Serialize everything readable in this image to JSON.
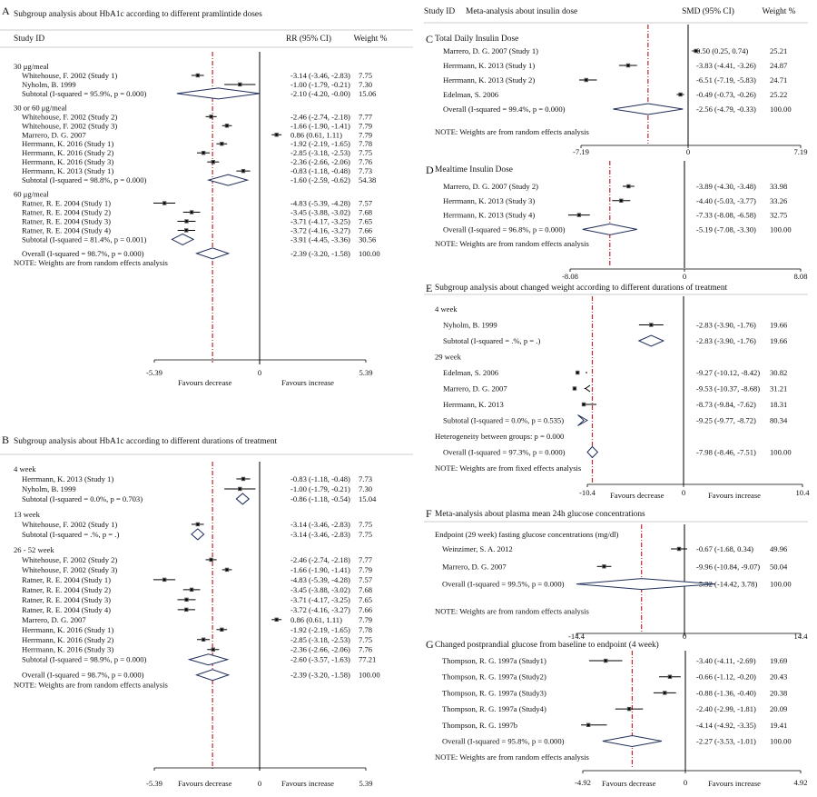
{
  "chart_data": [
    {
      "type": "forest",
      "panel": "A",
      "title": "Subgroup analysis about HbA1c according to different pramlintide doses",
      "header": {
        "study": "Study ID",
        "effect": "RR (95% CI)",
        "weight": "Weight %"
      },
      "xlim": [
        -5.39,
        5.39
      ],
      "ticks": [
        "-5.39",
        "0",
        "5.39"
      ],
      "footer_left": "Favours decrease",
      "footer_right": "Favours increase",
      "overall_value": -2.39,
      "rows": [
        {
          "label": "30 μg/meal",
          "kind": "group"
        },
        {
          "label": "Whitehouse, F. 2002 (Study 1)",
          "kind": "study",
          "est": -3.14,
          "lo": -3.46,
          "hi": -2.83,
          "ci": "-3.14 (-3.46, -2.83)",
          "weight": "7.75"
        },
        {
          "label": "Nyholm, B. 1999",
          "kind": "study",
          "est": -1.0,
          "lo": -1.79,
          "hi": -0.21,
          "ci": "-1.00 (-1.79, -0.21)",
          "weight": "7.30"
        },
        {
          "label": "Subtotal  (I-squared = 95.9%, p = 0.000)",
          "kind": "sub",
          "est": -2.1,
          "lo": -4.2,
          "hi": -0.0,
          "ci": "-2.10 (-4.20, -0.00)",
          "weight": "15.06"
        },
        {
          "kind": "gap"
        },
        {
          "label": "30 or 60 μg/meal",
          "kind": "group"
        },
        {
          "label": "Whitehouse, F. 2002 (Study 2)",
          "kind": "study",
          "est": -2.46,
          "lo": -2.74,
          "hi": -2.18,
          "ci": "-2.46 (-2.74, -2.18)",
          "weight": "7.77"
        },
        {
          "label": "Whitehouse, F. 2002 (Study 3)",
          "kind": "study",
          "est": -1.66,
          "lo": -1.9,
          "hi": -1.41,
          "ci": "-1.66 (-1.90, -1.41)",
          "weight": "7.79"
        },
        {
          "label": "Marrero, D. G. 2007",
          "kind": "study",
          "est": 0.86,
          "lo": 0.61,
          "hi": 1.11,
          "ci": "0.86 (0.61, 1.11)",
          "weight": "7.79"
        },
        {
          "label": "Herrmann, K. 2016 (Study 1)",
          "kind": "study",
          "est": -1.92,
          "lo": -2.19,
          "hi": -1.65,
          "ci": "-1.92 (-2.19, -1.65)",
          "weight": "7.78"
        },
        {
          "label": "Herrmann, K. 2016 (Study 2)",
          "kind": "study",
          "est": -2.85,
          "lo": -3.18,
          "hi": -2.53,
          "ci": "-2.85 (-3.18, -2.53)",
          "weight": "7.75"
        },
        {
          "label": "Herrmann, K. 2016 (Study 3)",
          "kind": "study",
          "est": -2.36,
          "lo": -2.66,
          "hi": -2.06,
          "ci": "-2.36 (-2.66, -2.06)",
          "weight": "7.76"
        },
        {
          "label": "Herrmann, K. 2013 (Study 1)",
          "kind": "study",
          "est": -0.83,
          "lo": -1.18,
          "hi": -0.48,
          "ci": "-0.83 (-1.18, -0.48)",
          "weight": "7.73"
        },
        {
          "label": "Subtotal  (I-squared = 98.8%, p = 0.000)",
          "kind": "sub",
          "est": -1.6,
          "lo": -2.59,
          "hi": -0.62,
          "ci": "-1.60 (-2.59, -0.62)",
          "weight": "54.38"
        },
        {
          "kind": "gap"
        },
        {
          "label": "60 μg/meal",
          "kind": "group"
        },
        {
          "label": "Ratner, R. E. 2004 (Study 1)",
          "kind": "study",
          "est": -4.83,
          "lo": -5.39,
          "hi": -4.28,
          "ci": "-4.83 (-5.39, -4.28)",
          "weight": "7.57"
        },
        {
          "label": "Ratner, R. E. 2004 (Study 2)",
          "kind": "study",
          "est": -3.45,
          "lo": -3.88,
          "hi": -3.02,
          "ci": "-3.45 (-3.88, -3.02)",
          "weight": "7.68"
        },
        {
          "label": "Ratner, R. E. 2004 (Study 3)",
          "kind": "study",
          "est": -3.71,
          "lo": -4.17,
          "hi": -3.25,
          "ci": "-3.71 (-4.17, -3.25)",
          "weight": "7.65"
        },
        {
          "label": "Ratner, R. E. 2004 (Study 4)",
          "kind": "study",
          "est": -3.72,
          "lo": -4.16,
          "hi": -3.27,
          "ci": "-3.72 (-4.16, -3.27)",
          "weight": "7.66"
        },
        {
          "label": "Subtotal  (I-squared = 81.4%, p = 0.001)",
          "kind": "sub",
          "est": -3.91,
          "lo": -4.45,
          "hi": -3.36,
          "ci": "-3.91 (-4.45, -3.36)",
          "weight": "30.56"
        },
        {
          "kind": "gap"
        },
        {
          "label": "Overall  (I-squared = 98.7%, p = 0.000)",
          "kind": "sub",
          "est": -2.39,
          "lo": -3.2,
          "hi": -1.58,
          "ci": "-2.39 (-3.20, -1.58)",
          "weight": "100.00"
        },
        {
          "label": "NOTE: Weights are from random effects analysis",
          "kind": "note"
        }
      ]
    },
    {
      "type": "forest",
      "panel": "B",
      "title": "Subgroup analysis about HbA1c according to different durations of treatment",
      "header": {
        "study": "",
        "effect": "",
        "weight": ""
      },
      "xlim": [
        -5.39,
        5.39
      ],
      "ticks": [
        "-5.39",
        "0",
        "5.39"
      ],
      "footer_left": "Favours decrease",
      "footer_right": "Favours increase",
      "overall_value": -2.39,
      "rows": [
        {
          "label": "4 week",
          "kind": "group"
        },
        {
          "label": "Herrmann, K. 2013 (Study 1)",
          "kind": "study",
          "est": -0.83,
          "lo": -1.18,
          "hi": -0.48,
          "ci": "-0.83 (-1.18, -0.48)",
          "weight": "7.73"
        },
        {
          "label": "Nyholm, B. 1999",
          "kind": "study",
          "est": -1.0,
          "lo": -1.79,
          "hi": -0.21,
          "ci": "-1.00 (-1.79, -0.21)",
          "weight": "7.30"
        },
        {
          "label": "Subtotal  (I-squared = 0.0%, p = 0.703)",
          "kind": "sub",
          "est": -0.86,
          "lo": -1.18,
          "hi": -0.54,
          "ci": "-0.86 (-1.18, -0.54)",
          "weight": "15.04"
        },
        {
          "kind": "gap"
        },
        {
          "label": "13 week",
          "kind": "group"
        },
        {
          "label": "Whitehouse, F. 2002 (Study 1)",
          "kind": "study",
          "est": -3.14,
          "lo": -3.46,
          "hi": -2.83,
          "ci": "-3.14 (-3.46, -2.83)",
          "weight": "7.75"
        },
        {
          "label": "Subtotal  (I-squared = .%, p = .)",
          "kind": "sub",
          "est": -3.14,
          "lo": -3.46,
          "hi": -2.83,
          "ci": "-3.14 (-3.46, -2.83)",
          "weight": "7.75"
        },
        {
          "kind": "gap"
        },
        {
          "label": "26 - 52 week",
          "kind": "group"
        },
        {
          "label": "Whitehouse, F. 2002 (Study 2)",
          "kind": "study",
          "est": -2.46,
          "lo": -2.74,
          "hi": -2.18,
          "ci": "-2.46 (-2.74, -2.18)",
          "weight": "7.77"
        },
        {
          "label": "Whitehouse, F. 2002 (Study 3)",
          "kind": "study",
          "est": -1.66,
          "lo": -1.9,
          "hi": -1.41,
          "ci": "-1.66 (-1.90, -1.41)",
          "weight": "7.79"
        },
        {
          "label": "Ratner, R. E. 2004 (Study 1)",
          "kind": "study",
          "est": -4.83,
          "lo": -5.39,
          "hi": -4.28,
          "ci": "-4.83 (-5.39, -4.28)",
          "weight": "7.57"
        },
        {
          "label": "Ratner, R. E. 2004 (Study 2)",
          "kind": "study",
          "est": -3.45,
          "lo": -3.88,
          "hi": -3.02,
          "ci": "-3.45 (-3.88, -3.02)",
          "weight": "7.68"
        },
        {
          "label": "Ratner, R. E. 2004 (Study 3)",
          "kind": "study",
          "est": -3.71,
          "lo": -4.17,
          "hi": -3.25,
          "ci": "-3.71 (-4.17, -3.25)",
          "weight": "7.65"
        },
        {
          "label": "Ratner, R. E. 2004 (Study 4)",
          "kind": "study",
          "est": -3.72,
          "lo": -4.16,
          "hi": -3.27,
          "ci": "-3.72 (-4.16, -3.27)",
          "weight": "7.66"
        },
        {
          "label": "Marrero, D. G. 2007",
          "kind": "study",
          "est": 0.86,
          "lo": 0.61,
          "hi": 1.11,
          "ci": "0.86 (0.61, 1.11)",
          "weight": "7.79"
        },
        {
          "label": "Herrmann, K. 2016 (Study 1)",
          "kind": "study",
          "est": -1.92,
          "lo": -2.19,
          "hi": -1.65,
          "ci": "-1.92 (-2.19, -1.65)",
          "weight": "7.78"
        },
        {
          "label": "Herrmann, K. 2016 (Study 2)",
          "kind": "study",
          "est": -2.85,
          "lo": -3.18,
          "hi": -2.53,
          "ci": "-2.85 (-3.18, -2.53)",
          "weight": "7.75"
        },
        {
          "label": "Herrmann, K. 2016 (Study 3)",
          "kind": "study",
          "est": -2.36,
          "lo": -2.66,
          "hi": -2.06,
          "ci": "-2.36 (-2.66, -2.06)",
          "weight": "7.76"
        },
        {
          "label": "Subtotal  (I-squared = 98.9%, p = 0.000)",
          "kind": "sub",
          "est": -2.6,
          "lo": -3.57,
          "hi": -1.63,
          "ci": "-2.60 (-3.57, -1.63)",
          "weight": "77.21"
        },
        {
          "kind": "gap"
        },
        {
          "label": "Overall  (I-squared = 98.7%, p = 0.000)",
          "kind": "sub",
          "est": -2.39,
          "lo": -3.2,
          "hi": -1.58,
          "ci": "-2.39 (-3.20, -1.58)",
          "weight": "100.00"
        },
        {
          "label": "NOTE: Weights are from random effects analysis",
          "kind": "note"
        }
      ]
    },
    {
      "type": "forest",
      "panel": "C",
      "title": "Total Daily Insulin Dose",
      "header": {
        "study": "Study   ID",
        "title": "Meta-analysis about insulin dose",
        "effect": "SMD (95% CI)",
        "weight": "Weight %"
      },
      "xlim": [
        -7.19,
        7.19
      ],
      "ticks": [
        "-7.19",
        "0",
        "7.19"
      ],
      "footer_left": "",
      "footer_right": "",
      "overall_value": -2.56,
      "rows": [
        {
          "label": "Marrero, D. G. 2007 (Study 1)",
          "kind": "study",
          "est": 0.5,
          "lo": 0.25,
          "hi": 0.74,
          "ci": "0.50 (0.25, 0.74)",
          "weight": "25.21"
        },
        {
          "label": "Herrmann, K. 2013 (Study 1)",
          "kind": "study",
          "est": -3.83,
          "lo": -4.41,
          "hi": -3.26,
          "ci": "-3.83 (-4.41, -3.26)",
          "weight": "24.87"
        },
        {
          "label": "Herrmann, K. 2013 (Study 2)",
          "kind": "study",
          "est": -6.51,
          "lo": -7.19,
          "hi": -5.83,
          "ci": "-6.51 (-7.19, -5.83)",
          "weight": "24.71"
        },
        {
          "label": "Edelman, S. 2006",
          "kind": "study",
          "est": -0.49,
          "lo": -0.73,
          "hi": -0.26,
          "ci": "-0.49 (-0.73, -0.26)",
          "weight": "25.22"
        },
        {
          "label": "Overall  (I-squared = 99.4%, p = 0.000)",
          "kind": "sub",
          "est": -2.56,
          "lo": -4.79,
          "hi": -0.33,
          "ci": "-2.56 (-4.79, -0.33)",
          "weight": "100.00"
        },
        {
          "kind": "gap"
        },
        {
          "label": "NOTE: Weights are from random effects analysis",
          "kind": "note"
        }
      ]
    },
    {
      "type": "forest",
      "panel": "D",
      "title": "Mealtime Insulin Dose",
      "header": {
        "study": "",
        "effect": "",
        "weight": ""
      },
      "xlim": [
        -8.08,
        8.08
      ],
      "ticks": [
        "-8.08",
        "0",
        "8.08"
      ],
      "footer_left": "",
      "footer_right": "",
      "overall_value": -5.19,
      "rows": [
        {
          "label": "Marrero, D. G. 2007 (Study 2)",
          "kind": "study",
          "est": -3.89,
          "lo": -4.3,
          "hi": -3.48,
          "ci": "-3.89 (-4.30, -3.48)",
          "weight": "33.98"
        },
        {
          "label": "Herrmann, K. 2013 (Study 3)",
          "kind": "study",
          "est": -4.4,
          "lo": -5.03,
          "hi": -3.77,
          "ci": "-4.40 (-5.03, -3.77)",
          "weight": "33.26"
        },
        {
          "label": "Herrmann, K. 2013 (Study 4)",
          "kind": "study",
          "est": -7.33,
          "lo": -8.08,
          "hi": -6.58,
          "ci": "-7.33 (-8.08, -6.58)",
          "weight": "32.75"
        },
        {
          "label": "Overall  (I-squared = 96.8%, p = 0.000)",
          "kind": "sub",
          "est": -5.19,
          "lo": -7.08,
          "hi": -3.3,
          "ci": "-5.19 (-7.08, -3.30)",
          "weight": "100.00"
        },
        {
          "label": "NOTE: Weights are from random effects analysis",
          "kind": "note"
        }
      ]
    },
    {
      "type": "forest",
      "panel": "E",
      "title": "Subgroup analysis  about changed weight according to different durations of treatment",
      "header": {
        "study": "",
        "effect": "",
        "weight": ""
      },
      "xlim": [
        -10.4,
        10.4
      ],
      "ticks": [
        "-10.4",
        "0",
        "10.4"
      ],
      "footer_left": "Favours decrease",
      "footer_right": "Favours increase",
      "overall_value": -7.98,
      "rows": [
        {
          "label": "4 week",
          "kind": "group"
        },
        {
          "label": "Nyholm, B. 1999",
          "kind": "study",
          "est": -2.83,
          "lo": -3.9,
          "hi": -1.76,
          "ci": "-2.83 (-3.90, -1.76)",
          "weight": "19.66"
        },
        {
          "label": "Subtotal  (I-squared = .%, p = .)",
          "kind": "sub",
          "est": -2.83,
          "lo": -3.9,
          "hi": -1.76,
          "ci": "-2.83 (-3.90, -1.76)",
          "weight": "19.66"
        },
        {
          "label": "29 week",
          "kind": "group"
        },
        {
          "label": "Edelman, S. 2006",
          "kind": "study",
          "est": -9.27,
          "lo": -10.12,
          "hi": -8.42,
          "ci": "-9.27 (-10.12, -8.42)",
          "weight": "30.82"
        },
        {
          "label": "Marrero, D. G. 2007",
          "kind": "study",
          "est": -9.53,
          "lo": -10.37,
          "hi": -8.68,
          "ci": "-9.53 (-10.37, -8.68)",
          "weight": "31.21",
          "arrow": true
        },
        {
          "label": "Herrmann, K. 2013",
          "kind": "study",
          "est": -8.73,
          "lo": -9.84,
          "hi": -7.62,
          "ci": "-8.73 (-9.84, -7.62)",
          "weight": "18.31"
        },
        {
          "label": "Subtotal  (I-squared = 0.0%, p = 0.535)",
          "kind": "sub",
          "est": -9.25,
          "lo": -9.77,
          "hi": -8.72,
          "ci": "-9.25 (-9.77, -8.72)",
          "weight": "80.34"
        },
        {
          "label": "Heterogeneity between groups: p = 0.000",
          "kind": "note"
        },
        {
          "label": "Overall  (I-squared = 97.3%, p = 0.000)",
          "kind": "sub",
          "est": -7.98,
          "lo": -8.46,
          "hi": -7.51,
          "ci": "-7.98 (-8.46, -7.51)",
          "weight": "100.00"
        },
        {
          "label": "NOTE: Weights are from fixed effects analysis",
          "kind": "note"
        }
      ]
    },
    {
      "type": "forest",
      "panel": "F",
      "title": "Meta-analysis about plasma mean 24h glucose concentrations",
      "subtitle": "Endpoint (29 week) fasting glucose concentrations (mg/dl)",
      "header": {
        "study": "",
        "effect": "",
        "weight": ""
      },
      "xlim": [
        -14.4,
        14.4
      ],
      "ticks": [
        "-14.4",
        "0",
        "14.4"
      ],
      "footer_left": "",
      "footer_right": "",
      "overall_value": -5.32,
      "rows": [
        {
          "label": "Weinzimer, S. A. 2012",
          "kind": "study",
          "est": -0.67,
          "lo": -1.68,
          "hi": 0.34,
          "ci": "-0.67 (-1.68, 0.34)",
          "weight": "49.96"
        },
        {
          "label": "Marrero, D. G. 2007",
          "kind": "study",
          "est": -9.96,
          "lo": -10.84,
          "hi": -9.07,
          "ci": "-9.96 (-10.84, -9.07)",
          "weight": "50.04"
        },
        {
          "label": "Overall  (I-squared = 99.5%, p = 0.000)",
          "kind": "sub",
          "est": -5.32,
          "lo": -14.42,
          "hi": 3.78,
          "ci": "-5.32 (-14.42, 3.78)",
          "weight": "100.00"
        },
        {
          "kind": "gap"
        },
        {
          "label": "NOTE: Weights are from random effects analysis",
          "kind": "note"
        }
      ]
    },
    {
      "type": "forest",
      "panel": "G",
      "title": "Changed postprandial glucose from baseline to endpoint (4 week)",
      "header": {
        "study": "",
        "effect": "",
        "weight": ""
      },
      "xlim": [
        -4.92,
        4.92
      ],
      "ticks": [
        "-4.92",
        "0",
        "4.92"
      ],
      "footer_left": "Favours decrease",
      "footer_right": "Favours increase",
      "overall_value": -2.27,
      "rows": [
        {
          "label": "Thompson, R. G. 1997a (Study1)",
          "kind": "study",
          "est": -3.4,
          "lo": -4.11,
          "hi": -2.69,
          "ci": "-3.40 (-4.11, -2.69)",
          "weight": "19.69"
        },
        {
          "label": "Thompson, R. G. 1997a (Study2)",
          "kind": "study",
          "est": -0.66,
          "lo": -1.12,
          "hi": -0.2,
          "ci": "-0.66 (-1.12, -0.20)",
          "weight": "20.43"
        },
        {
          "label": "Thompson, R. G. 1997a (Study3)",
          "kind": "study",
          "est": -0.88,
          "lo": -1.36,
          "hi": -0.4,
          "ci": "-0.88 (-1.36, -0.40)",
          "weight": "20.38"
        },
        {
          "label": "Thompson, R. G. 1997a (Study4)",
          "kind": "study",
          "est": -2.4,
          "lo": -2.99,
          "hi": -1.81,
          "ci": "-2.40 (-2.99, -1.81)",
          "weight": "20.09"
        },
        {
          "label": "Thompson, R. G. 1997b",
          "kind": "study",
          "est": -4.14,
          "lo": -4.92,
          "hi": -3.35,
          "ci": "-4.14 (-4.92, -3.35)",
          "weight": "19.41"
        },
        {
          "label": "Overall  (I-squared = 95.8%, p = 0.000)",
          "kind": "sub",
          "est": -2.27,
          "lo": -3.53,
          "hi": -1.01,
          "ci": "-2.27 (-3.53, -1.01)",
          "weight": "100.00"
        },
        {
          "label": "NOTE: Weights are from random effects analysis",
          "kind": "note"
        }
      ]
    }
  ]
}
